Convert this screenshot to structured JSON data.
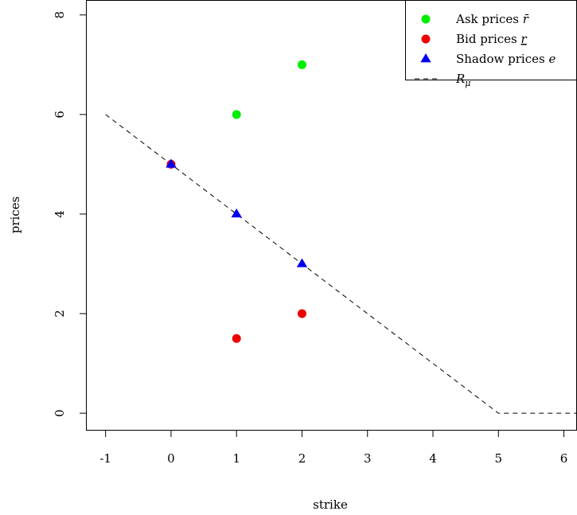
{
  "chart_data": {
    "type": "scatter",
    "title": "",
    "xlabel": "strike",
    "ylabel": "prices",
    "xlim": [
      -1.3,
      6.2
    ],
    "ylim": [
      -0.35,
      8.3
    ],
    "x_ticks": [
      -1,
      0,
      1,
      2,
      3,
      4,
      5,
      6
    ],
    "y_ticks": [
      0,
      2,
      4,
      6,
      8
    ],
    "grid": false,
    "legend_position": "top-right",
    "series": [
      {
        "name": "Ask prices r̄",
        "label_main": "Ask prices ",
        "label_symbol": "r̄",
        "marker": "circle",
        "color": "#00ee00",
        "points": [
          {
            "x": 1,
            "y": 6
          },
          {
            "x": 2,
            "y": 7
          }
        ]
      },
      {
        "name": "Bid prices r",
        "label_main": "Bid prices ",
        "label_symbol": "r",
        "marker": "circle",
        "color": "#ee0000",
        "points": [
          {
            "x": 0,
            "y": 5
          },
          {
            "x": 1,
            "y": 1.5
          },
          {
            "x": 2,
            "y": 2
          }
        ]
      },
      {
        "name": "Shadow prices e",
        "label_main": "Shadow prices ",
        "label_symbol": "e",
        "marker": "triangle",
        "color": "#0000ee",
        "points": [
          {
            "x": 0,
            "y": 5
          },
          {
            "x": 1,
            "y": 4
          },
          {
            "x": 2,
            "y": 3
          }
        ]
      },
      {
        "name": "Rμ",
        "label_main": "R",
        "label_symbol": "μ",
        "marker": "dashed-line",
        "color": "#000000",
        "points": [
          {
            "x": -1,
            "y": 6
          },
          {
            "x": 5,
            "y": 0
          },
          {
            "x": 6.2,
            "y": 0
          }
        ]
      }
    ]
  }
}
